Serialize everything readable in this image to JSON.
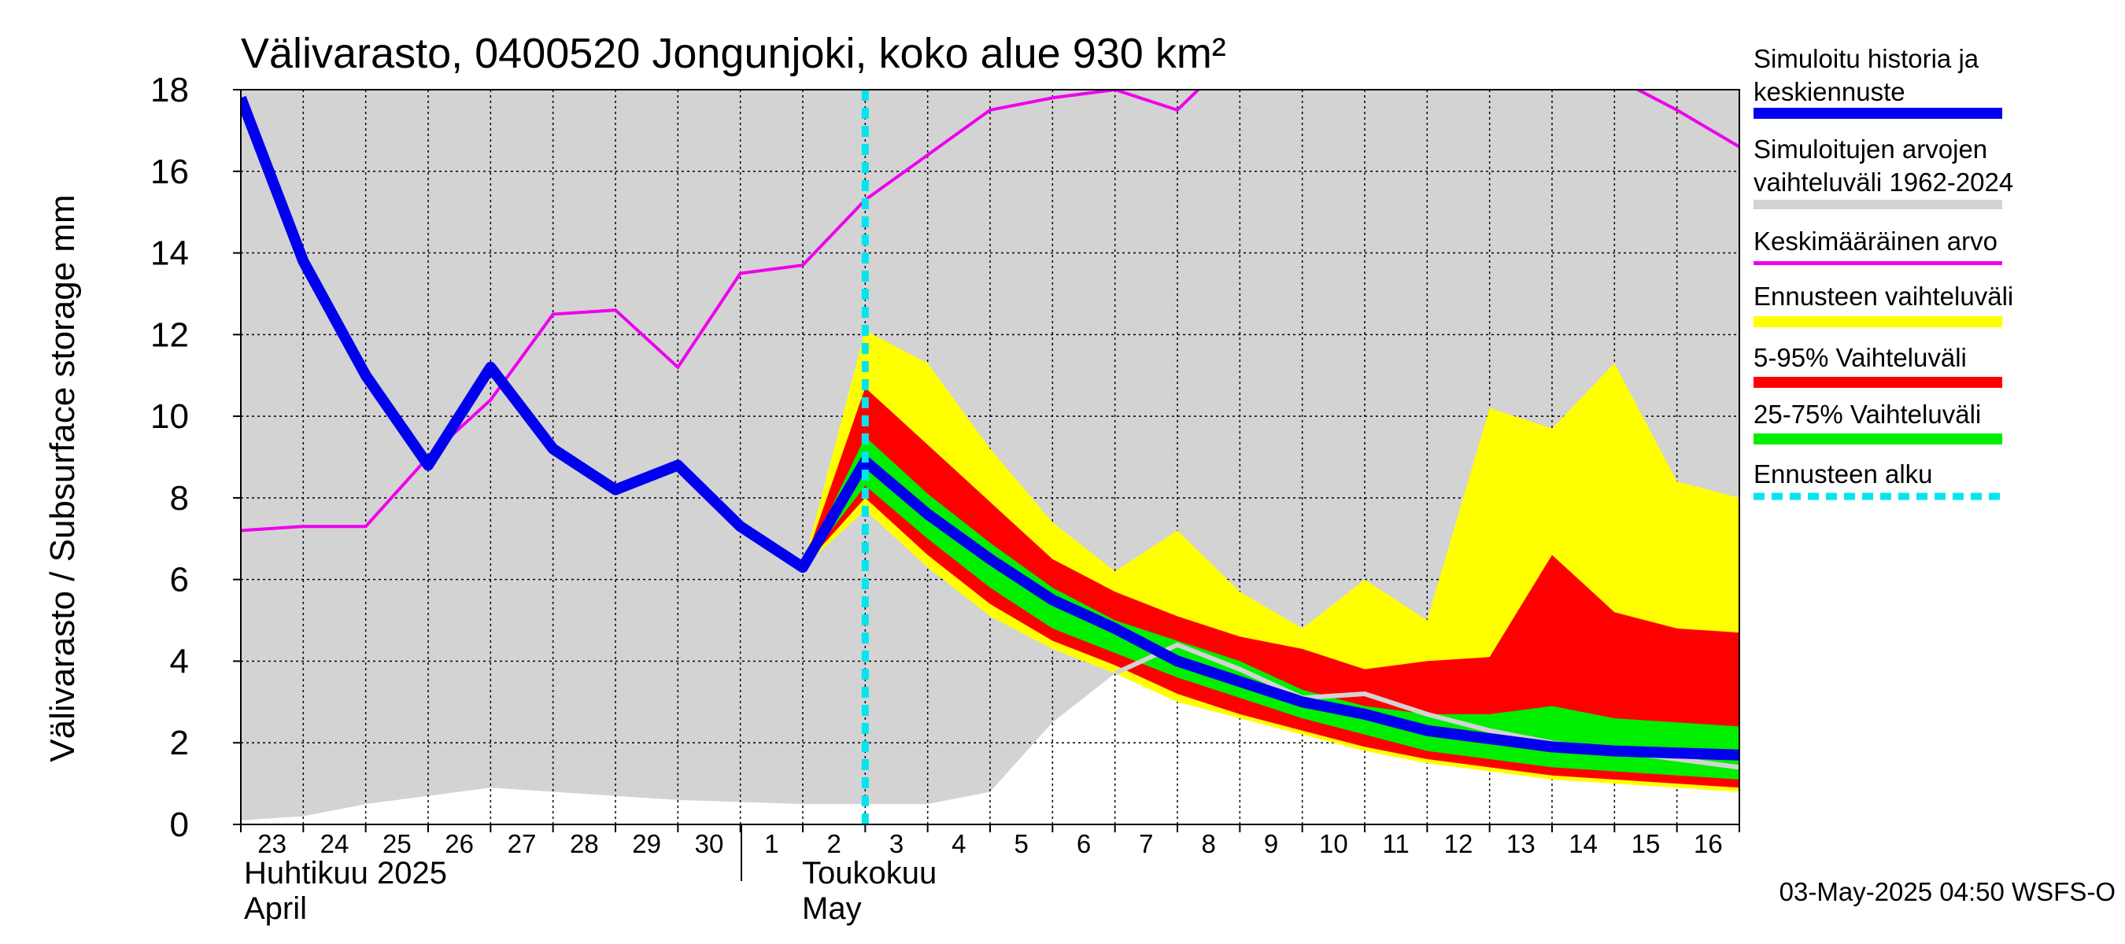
{
  "chart_data": {
    "type": "area",
    "title": "Välivarasto, 0400520 Jongunjoki, koko alue 930 km²",
    "ylabel": "Välivarasto / Subsurface storage  mm",
    "ylim": [
      0,
      18
    ],
    "yticks": [
      0,
      2,
      4,
      6,
      8,
      10,
      12,
      14,
      16,
      18
    ],
    "x_days": [
      "23",
      "24",
      "25",
      "26",
      "27",
      "28",
      "29",
      "30",
      "1",
      "2",
      "3",
      "4",
      "5",
      "6",
      "7",
      "8",
      "9",
      "10",
      "11",
      "12",
      "13",
      "14",
      "15",
      "16"
    ],
    "month_labels": [
      {
        "fi": "Huhtikuu  2025",
        "en": "April"
      },
      {
        "fi": "Toukokuu",
        "en": "May"
      }
    ],
    "grid": true,
    "forecast_start_day": "3",
    "timestamp": "03-May-2025 04:50 WSFS-O",
    "legend_placement": "right",
    "legend": [
      {
        "label": "Simuloitu historia ja keskiennuste",
        "color": "#0000ee"
      },
      {
        "label": "Simuloitujen arvojen vaihteluväli 1962-2024",
        "color": "#d3d3d3"
      },
      {
        "label": "Keskimääräinen arvo",
        "color": "#ee00ee"
      },
      {
        "label": "Ennusteen vaihteluväli",
        "color": "#ffff00"
      },
      {
        "label": "5-95% Vaihteluväli",
        "color": "#ff0000"
      },
      {
        "label": "25-75% Vaihteluväli",
        "color": "#00ee00"
      },
      {
        "label": "Ennusteen alku",
        "color": "#00e5ee"
      }
    ],
    "series": {
      "hist_range": {
        "x": [
          0,
          1,
          2,
          3,
          4,
          5,
          6,
          7,
          8,
          9,
          10,
          11,
          12,
          13,
          14,
          15,
          16,
          17,
          18,
          19,
          20,
          21,
          22,
          23,
          24
        ],
        "upper": [
          18,
          18,
          18,
          18,
          18,
          18,
          18,
          18,
          18,
          18,
          18,
          18,
          18,
          18,
          18,
          18,
          18,
          18,
          18,
          18,
          18,
          18,
          18,
          18,
          18
        ],
        "lower": [
          0.1,
          0.2,
          0.5,
          0.7,
          0.9,
          0.8,
          0.7,
          0.6,
          0.55,
          0.5,
          0.5,
          0.5,
          0.8,
          2.5,
          3.7,
          4.4,
          3.8,
          3.1,
          3.2,
          2.7,
          2.3,
          2.0,
          1.8,
          1.6,
          1.4
        ]
      },
      "forecast_range": {
        "x": [
          9,
          10,
          11,
          12,
          13,
          14,
          15,
          16,
          17,
          18,
          19,
          20,
          21,
          22,
          23,
          24
        ],
        "upper": [
          6.3,
          12.1,
          11.3,
          9.2,
          7.4,
          6.2,
          7.2,
          5.7,
          4.8,
          6.0,
          5.0,
          10.2,
          9.7,
          11.3,
          8.4,
          8.0
        ],
        "lower": [
          6.3,
          7.7,
          6.3,
          5.1,
          4.3,
          3.7,
          3.0,
          2.6,
          2.2,
          1.8,
          1.5,
          1.3,
          1.1,
          1.0,
          0.9,
          0.8
        ]
      },
      "p5_95": {
        "x": [
          9,
          10,
          11,
          12,
          13,
          14,
          15,
          16,
          17,
          18,
          19,
          20,
          21,
          22,
          23,
          24
        ],
        "upper": [
          6.3,
          10.7,
          9.3,
          7.9,
          6.5,
          5.7,
          5.1,
          4.6,
          4.3,
          3.8,
          4.0,
          4.1,
          6.6,
          5.2,
          4.8,
          4.7
        ],
        "lower": [
          6.3,
          8.0,
          6.6,
          5.4,
          4.5,
          3.9,
          3.2,
          2.7,
          2.3,
          1.9,
          1.6,
          1.4,
          1.2,
          1.1,
          1.0,
          0.9
        ]
      },
      "p25_75": {
        "x": [
          9,
          10,
          11,
          12,
          13,
          14,
          15,
          16,
          17,
          18,
          19,
          20,
          21,
          22,
          23,
          24
        ],
        "upper": [
          6.3,
          9.5,
          8.1,
          6.9,
          5.8,
          5.0,
          4.5,
          4.0,
          3.3,
          2.9,
          2.7,
          2.7,
          2.9,
          2.6,
          2.5,
          2.4
        ],
        "lower": [
          6.3,
          8.3,
          7.0,
          5.8,
          4.8,
          4.2,
          3.6,
          3.1,
          2.6,
          2.2,
          1.8,
          1.6,
          1.4,
          1.3,
          1.2,
          1.1
        ]
      },
      "simulated": {
        "x": [
          0,
          1,
          2,
          3,
          4,
          5,
          6,
          7,
          8,
          9,
          10,
          11,
          12,
          13,
          14,
          15,
          16,
          17,
          18,
          19,
          20,
          21,
          22,
          23,
          24
        ],
        "y": [
          17.8,
          13.8,
          11.0,
          8.8,
          11.2,
          9.2,
          8.2,
          8.8,
          7.3,
          6.3,
          8.9,
          7.6,
          6.5,
          5.5,
          4.8,
          4.0,
          3.5,
          3.0,
          2.7,
          2.3,
          2.1,
          1.9,
          1.8,
          1.75,
          1.7
        ]
      },
      "gray_line": {
        "x": [
          14,
          15,
          16,
          17,
          18,
          19,
          20,
          21,
          22,
          23,
          24
        ],
        "y": [
          3.7,
          4.4,
          3.8,
          3.1,
          3.2,
          2.7,
          2.3,
          2.0,
          1.8,
          1.6,
          1.4
        ]
      },
      "average": {
        "x": [
          0,
          1,
          2,
          3,
          4,
          5,
          6,
          7,
          8,
          9,
          10,
          11,
          12,
          13,
          14,
          15,
          16,
          17,
          18,
          19,
          20,
          21,
          22,
          23,
          24
        ],
        "y": [
          7.2,
          7.3,
          7.3,
          9.0,
          10.4,
          12.5,
          12.6,
          11.2,
          13.5,
          13.7,
          15.3,
          16.4,
          17.5,
          17.8,
          18.0,
          17.5,
          19.0,
          20.0,
          20.0,
          20.0,
          20.0,
          20.0,
          18.3,
          17.5,
          16.6
        ]
      }
    }
  }
}
